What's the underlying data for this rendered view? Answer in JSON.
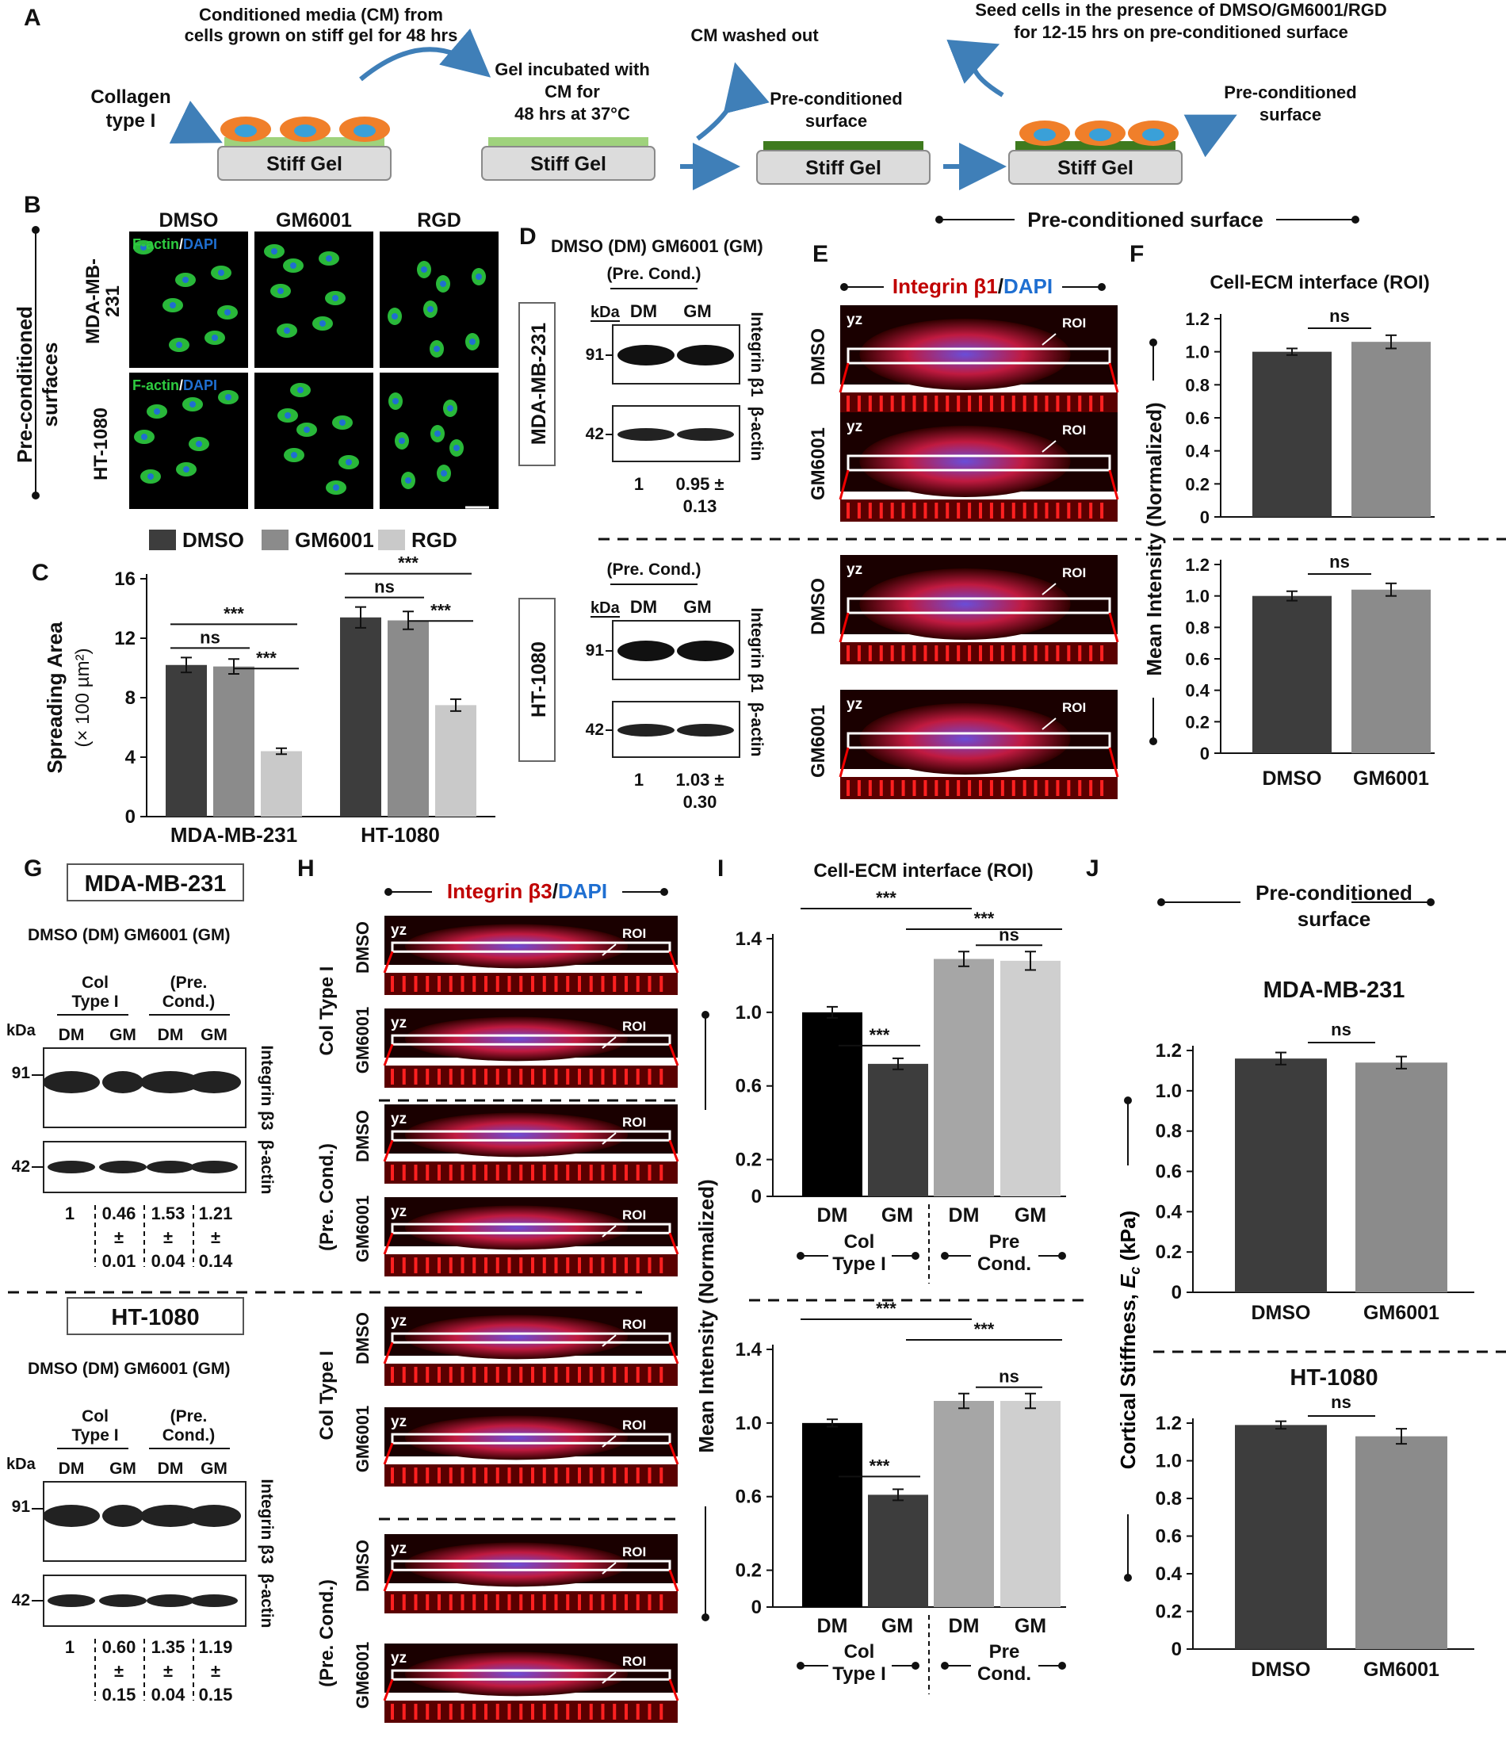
{
  "colors": {
    "dmso": "#3d3d3d",
    "gm6001": "#8b8b8b",
    "rgd": "#c9c9c9",
    "black": "#000000",
    "dm_light": "#a6a6a6",
    "dm_lighter": "#cfcfcf",
    "cell": "#f07f2a",
    "nucleus": "#3aa0d8",
    "matrix": "#9fd27c",
    "matrix_dark": "#3e7a1e",
    "arrow": "#3f7fb8",
    "red": "#c00000",
    "blue": "#1f6fd1",
    "green": "#2ecc40"
  },
  "panelA": {
    "letter": "A",
    "cm_text": [
      "Conditioned media (CM) from",
      "cells grown on stiff gel for 48 hrs"
    ],
    "collagen_label": [
      "Collagen",
      "type I"
    ],
    "gel_incubated": [
      "Gel incubated with",
      "CM for",
      "48 hrs at 37°C"
    ],
    "washed": "CM  washed out",
    "precond_mid": [
      "Pre-conditioned",
      "surface"
    ],
    "seed_text": [
      "Seed cells in the presence of DMSO/GM6001/RGD",
      "for 12-15 hrs on pre-conditioned surface"
    ],
    "precond_right": [
      "Pre-conditioned",
      "surface"
    ],
    "gel_label": "Stiff Gel"
  },
  "panelB": {
    "letter": "B",
    "side": [
      "Pre-conditioned",
      "surfaces"
    ],
    "cols": [
      "DMSO",
      "GM6001",
      "RGD"
    ],
    "rows": [
      "MDA-MB-231",
      "HT-1080"
    ],
    "row1_label": [
      "MDA-MB-",
      "231"
    ],
    "stain_green": "F-actin",
    "stain_sep": "/",
    "stain_blue": "DAPI"
  },
  "legend": {
    "items": [
      "DMSO",
      "GM6001",
      "RGD"
    ]
  },
  "precond_header": "Pre-conditioned surface",
  "panelC": {
    "letter": "C",
    "ylabel": "Spreading Area",
    "yunit": "(× 100 µm²)",
    "sig": [
      "ns",
      "***",
      "***",
      "ns",
      "***",
      "***"
    ]
  },
  "panelD": {
    "letter": "D",
    "title": "DMSO (DM)   GM6001 (GM)",
    "precond": "(Pre. Cond.)",
    "kda": "kDa",
    "lanes": [
      "DM",
      "GM"
    ],
    "mw": [
      "91",
      "42"
    ],
    "proteins": [
      "Integrin β1",
      "β-actin"
    ],
    "cells": [
      "MDA-MB-231",
      "HT-1080"
    ],
    "q1": [
      "1",
      "0.95 ±",
      "0.13"
    ],
    "q2": [
      "1",
      "1.03 ±",
      "0.30"
    ]
  },
  "panelE": {
    "letter": "E",
    "title_red": "Integrin β1",
    "title_sep": "/",
    "title_blue": "DAPI",
    "yz": "yz",
    "roi": "ROI",
    "rows": [
      "DMSO",
      "GM6001",
      "DMSO",
      "GM6001"
    ]
  },
  "panelF": {
    "letter": "F",
    "title": "Cell-ECM interface  (ROI)",
    "ylabel": "Mean Intensity (Normalized)",
    "sig": "ns"
  },
  "panelG": {
    "letter": "G",
    "cells": [
      "MDA-MB-231",
      "HT-1080"
    ],
    "title": "DMSO (DM)         GM6001 (GM)",
    "col_group": [
      "Col",
      "Type I"
    ],
    "pre_group": [
      "(Pre.",
      "Cond.)"
    ],
    "kda": "kDa",
    "lanes": [
      "DM",
      "GM",
      "DM",
      "GM"
    ],
    "mw": [
      "91",
      "42"
    ],
    "proteins": [
      "Integrin β3",
      "β-actin"
    ],
    "q1": [
      [
        "1",
        "",
        ""
      ],
      [
        "0.46",
        "±",
        "0.01"
      ],
      [
        "1.53",
        "±",
        "0.04"
      ],
      [
        "1.21",
        "±",
        "0.14"
      ]
    ],
    "q2": [
      [
        "1",
        "",
        ""
      ],
      [
        "0.60",
        "±",
        "0.15"
      ],
      [
        "1.35",
        "±",
        "0.04"
      ],
      [
        "1.19",
        "±",
        "0.15"
      ]
    ]
  },
  "panelH": {
    "letter": "H",
    "title_red": "Integrin β3",
    "title_sep": "/",
    "title_blue": "DAPI",
    "yz": "yz",
    "roi": "ROI",
    "rows": [
      "DMSO",
      "GM6001",
      "DMSO",
      "GM6001"
    ],
    "groups": [
      "Col Type I",
      "(Pre. Cond.)"
    ]
  },
  "panelI": {
    "letter": "I",
    "title": "Cell-ECM interface  (ROI)",
    "ylabel": "Mean Intensity (Normalized)",
    "group_col": [
      "Col",
      "Type I"
    ],
    "group_pre": [
      "Pre",
      "Cond."
    ],
    "sig": [
      "***",
      "***",
      "***",
      "ns"
    ]
  },
  "panelJ": {
    "letter": "J",
    "header": [
      "Pre-conditioned",
      "surface"
    ],
    "cells": [
      "MDA-MB-231",
      "HT-1080"
    ],
    "ylabel": "Cortical Stiffness, ",
    "ylabel_ital": "E",
    "ylabel_sub": "c",
    "ylabel_unit": " (kPa)",
    "sig": "ns"
  },
  "chart_data": [
    {
      "panel": "C",
      "type": "bar",
      "categories": [
        "MDA-MB-231",
        "HT-1080"
      ],
      "series": [
        {
          "name": "DMSO",
          "values": [
            10.2,
            13.4
          ],
          "errors": [
            0.5,
            0.7
          ]
        },
        {
          "name": "GM6001",
          "values": [
            10.1,
            13.2
          ],
          "errors": [
            0.5,
            0.6
          ]
        },
        {
          "name": "RGD",
          "values": [
            4.4,
            7.5
          ],
          "errors": [
            0.2,
            0.4
          ]
        }
      ],
      "ylim": [
        0,
        16
      ],
      "yticks": [
        "0",
        "4",
        "8",
        "12",
        "16"
      ],
      "xlabel": "",
      "ylabel": "Spreading Area (× 100 µm²)"
    },
    {
      "panel": "F-top",
      "type": "bar",
      "categories": [
        "DMSO",
        "GM6001"
      ],
      "values": [
        1.0,
        1.06
      ],
      "errors": [
        0.02,
        0.04
      ],
      "ylim": [
        0,
        1.2
      ],
      "yticks": [
        "0",
        "0.2",
        "0.4",
        "0.6",
        "0.8",
        "1.0",
        "1.2"
      ]
    },
    {
      "panel": "F-bottom",
      "type": "bar",
      "categories": [
        "DMSO",
        "GM6001"
      ],
      "values": [
        1.0,
        1.04
      ],
      "errors": [
        0.03,
        0.04
      ],
      "ylim": [
        0,
        1.2
      ],
      "yticks": [
        "0",
        "0.2",
        "0.4",
        "0.6",
        "0.8",
        "1.0",
        "1.2"
      ]
    },
    {
      "panel": "I-top",
      "type": "bar",
      "categories": [
        "DM",
        "GM",
        "DM",
        "GM"
      ],
      "values": [
        1.0,
        0.72,
        1.29,
        1.28
      ],
      "errors": [
        0.03,
        0.03,
        0.04,
        0.05
      ],
      "ylim": [
        0,
        1.4
      ],
      "yticks": [
        "0",
        "0.2",
        "0.6",
        "1.0",
        "1.4"
      ]
    },
    {
      "panel": "I-bottom",
      "type": "bar",
      "categories": [
        "DM",
        "GM",
        "DM",
        "GM"
      ],
      "values": [
        1.0,
        0.61,
        1.12,
        1.12
      ],
      "errors": [
        0.02,
        0.03,
        0.04,
        0.04
      ],
      "ylim": [
        0,
        1.4
      ],
      "yticks": [
        "0",
        "0.2",
        "0.6",
        "1.0",
        "1.4"
      ]
    },
    {
      "panel": "J-top",
      "type": "bar",
      "categories": [
        "DMSO",
        "GM6001"
      ],
      "values": [
        1.16,
        1.14
      ],
      "errors": [
        0.03,
        0.03
      ],
      "ylim": [
        0,
        1.2
      ],
      "yticks": [
        "0",
        "0.2",
        "0.4",
        "0.6",
        "0.8",
        "1.0",
        "1.2"
      ]
    },
    {
      "panel": "J-bottom",
      "type": "bar",
      "categories": [
        "DMSO",
        "GM6001"
      ],
      "values": [
        1.19,
        1.13
      ],
      "errors": [
        0.02,
        0.04
      ],
      "ylim": [
        0,
        1.2
      ],
      "yticks": [
        "0",
        "0.2",
        "0.4",
        "0.6",
        "0.8",
        "1.0",
        "1.2"
      ]
    }
  ]
}
